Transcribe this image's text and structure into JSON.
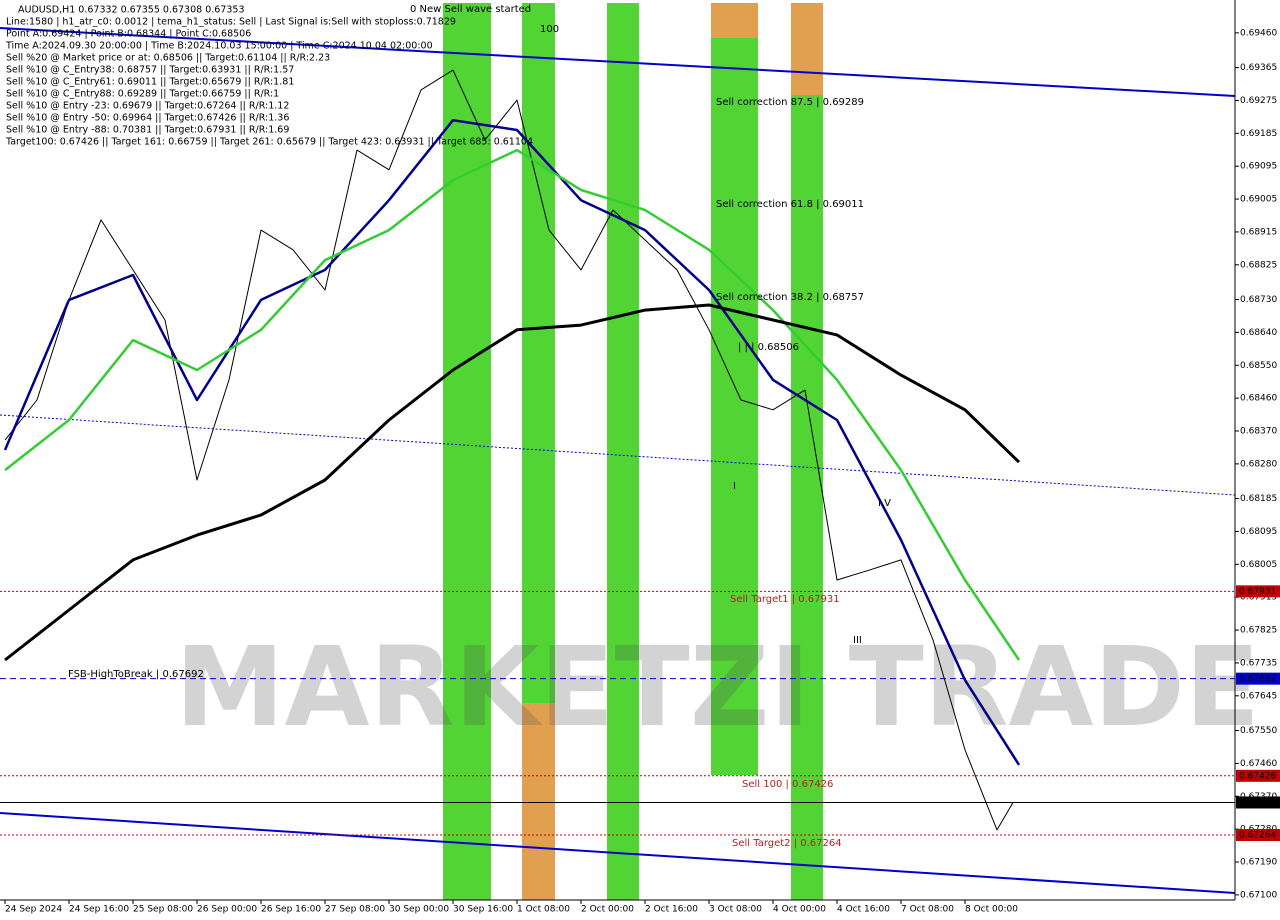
{
  "chart_data": {
    "type": "line",
    "title": "AUDUSD,H1  0.67332 0.67355 0.67308 0.67353",
    "info": [
      "Line:1580 | h1_atr_c0: 0.0012 | tema_h1_status: Sell | Last Signal is:Sell with stoploss:0.71829",
      "Point A:0.69424 | Point B:0.68344 | Point C:0.68506",
      "Time A:2024.09.30 20:00:00 | Time B:2024.10.03 15:00:00 | Time C:2024.10.04 02:00:00",
      "Sell %20 @ Market price or at: 0.68506 || Target:0.61104 || R/R:2.23",
      "Sell %10 @ C_Entry38: 0.68757 || Target:0.63931 || R/R:1.57",
      "Sell %10 @ C_Entry61: 0.69011 || Target:0.65679 || R/R:1.81",
      "Sell %10 @ C_Entry88: 0.69289 || Target:0.66759 || R/R:1",
      "Sell %10 @ Entry -23: 0.69679 || Target:0.67264 || R/R:1.12",
      "Sell %10 @ Entry -50: 0.69964 || Target:0.67426 || R/R:1.36",
      "Sell %10 @ Entry -88: 0.70381 || Target:0.67931 || R/R:1.69",
      "Target100: 0.67426 || Target 161: 0.66759 || Target 261: 0.65679 || Target 423: 0.63931 || Target 685: 0.61104"
    ],
    "annotations": [
      {
        "text": "0 New Sell wave started",
        "color": "#000000"
      },
      {
        "text": "100",
        "color": "#000000"
      },
      {
        "text": "Sell correction 87.5 | 0.69289",
        "color": "#000000"
      },
      {
        "text": "Sell correction 61.8 | 0.69011",
        "color": "#000000"
      },
      {
        "text": "Sell correction 38.2 | 0.68757",
        "color": "#000000"
      },
      {
        "text": "| | | 0.68506",
        "color": "#000000"
      },
      {
        "text": "I V",
        "color": "#000000"
      },
      {
        "text": "III",
        "color": "#000000"
      },
      {
        "text": "I",
        "color": "#000000"
      },
      {
        "text": "Sell Target1 | 0.67931",
        "color": "#b22222"
      },
      {
        "text": "FSB-HighToBreak | 0.67692",
        "color": "#000000"
      },
      {
        "text": "Sell 100 | 0.67426",
        "color": "#b22222"
      },
      {
        "text": "Sell Target2 | 0.67264",
        "color": "#b22222"
      }
    ],
    "watermark": "MARKETZI TRADE",
    "xlim": [
      -1.25,
      307.5
    ],
    "ylim": [
      0.67086,
      0.6955
    ],
    "xticks": [
      {
        "value": 0,
        "label": "24 Sep 2024"
      },
      {
        "value": 16,
        "label": "24 Sep 16:00"
      },
      {
        "value": 32,
        "label": "25 Sep 08:00"
      },
      {
        "value": 48,
        "label": "26 Sep 00:00"
      },
      {
        "value": 64,
        "label": "26 Sep 16:00"
      },
      {
        "value": 80,
        "label": "27 Sep 08:00"
      },
      {
        "value": 96,
        "label": "30 Sep 00:00"
      },
      {
        "value": 112,
        "label": "30 Sep 16:00"
      },
      {
        "value": 128,
        "label": "1 Oct 08:00"
      },
      {
        "value": 144,
        "label": "2 Oct 00:00"
      },
      {
        "value": 160,
        "label": "2 Oct 16:00"
      },
      {
        "value": 176,
        "label": "3 Oct 08:00"
      },
      {
        "value": 192,
        "label": "4 Oct 00:00"
      },
      {
        "value": 208,
        "label": "4 Oct 16:00"
      },
      {
        "value": 224,
        "label": "7 Oct 08:00"
      },
      {
        "value": 240,
        "label": "8 Oct 00:00"
      }
    ],
    "yticks": [
      {
        "value": 0.6946,
        "label": "0.69460"
      },
      {
        "value": 0.69365,
        "label": "0.69365"
      },
      {
        "value": 0.69275,
        "label": "0.69275"
      },
      {
        "value": 0.69185,
        "label": "0.69185"
      },
      {
        "value": 0.69095,
        "label": "0.69095"
      },
      {
        "value": 0.69005,
        "label": "0.69005"
      },
      {
        "value": 0.68915,
        "label": "0.68915"
      },
      {
        "value": 0.68825,
        "label": "0.68825"
      },
      {
        "value": 0.6873,
        "label": "0.68730"
      },
      {
        "value": 0.6864,
        "label": "0.68640"
      },
      {
        "value": 0.6855,
        "label": "0.68550"
      },
      {
        "value": 0.6846,
        "label": "0.68460"
      },
      {
        "value": 0.6837,
        "label": "0.68370"
      },
      {
        "value": 0.6828,
        "label": "0.68280"
      },
      {
        "value": 0.68185,
        "label": "0.68185"
      },
      {
        "value": 0.68095,
        "label": "0.68095"
      },
      {
        "value": 0.68005,
        "label": "0.68005"
      },
      {
        "value": 0.67915,
        "label": "0.67915"
      },
      {
        "value": 0.67825,
        "label": "0.67825"
      },
      {
        "value": 0.67735,
        "label": "0.67735"
      },
      {
        "value": 0.67645,
        "label": "0.67645"
      },
      {
        "value": 0.6755,
        "label": "0.67550"
      },
      {
        "value": 0.6746,
        "label": "0.67460"
      },
      {
        "value": 0.6737,
        "label": "0.67370"
      },
      {
        "value": 0.6728,
        "label": "0.67280"
      },
      {
        "value": 0.6719,
        "label": "0.67190"
      },
      {
        "value": 0.671,
        "label": "0.67100"
      }
    ],
    "levels": [
      {
        "value": 0.67931,
        "label": "0.67931",
        "color": "#c00000",
        "dash": "2,2"
      },
      {
        "value": 0.67692,
        "label": "0.67692",
        "color": "#0000cc",
        "dash": "6,4"
      },
      {
        "value": 0.67426,
        "label": "0.67426",
        "color": "#c00000",
        "dash": "2,2"
      },
      {
        "value": 0.67353,
        "label": "0.67353",
        "color": "#000000",
        "dash": "none"
      },
      {
        "value": 0.67264,
        "label": "0.67264",
        "color": "#c00000",
        "dash": "2,2"
      }
    ],
    "series": [
      {
        "color": "#000000",
        "width": 1,
        "x": [
          0,
          8,
          16,
          24,
          32,
          40,
          48,
          56,
          64,
          72,
          80,
          88,
          96,
          104,
          112,
          120,
          128,
          136,
          144,
          152,
          160,
          168,
          176,
          184,
          192,
          200,
          208,
          216,
          224,
          232,
          240,
          248,
          252
        ],
        "values": [
          0.68345,
          0.68455,
          0.68729,
          0.68948,
          0.68811,
          0.68674,
          0.68236,
          0.6851,
          0.6892,
          0.68866,
          0.68756,
          0.69139,
          0.69085,
          0.69304,
          0.69358,
          0.69167,
          0.69276,
          0.6892,
          0.68811,
          0.68975,
          0.68893,
          0.68811,
          0.68647,
          0.68455,
          0.68428,
          0.68482,
          0.67962,
          0.67989,
          0.68017,
          0.67798,
          0.67497,
          0.67278,
          0.67353
        ]
      },
      {
        "color": "#00008b",
        "width": 2.5,
        "x": [
          0,
          16,
          32,
          48,
          64,
          80,
          96,
          112,
          128,
          144,
          160,
          176,
          192,
          208,
          224,
          240,
          253.5
        ],
        "values": [
          0.68318,
          0.68729,
          0.68797,
          0.68455,
          0.68729,
          0.68811,
          0.69002,
          0.69221,
          0.69194,
          0.69002,
          0.6892,
          0.68756,
          0.6851,
          0.684,
          0.68072,
          0.67688,
          0.67456
        ]
      },
      {
        "color": "#33cc33",
        "width": 2.5,
        "x": [
          0,
          16,
          32,
          48,
          64,
          80,
          96,
          112,
          128,
          144,
          160,
          176,
          192,
          208,
          224,
          240,
          253.5
        ],
        "values": [
          0.68263,
          0.684,
          0.68619,
          0.68537,
          0.68647,
          0.68838,
          0.6892,
          0.69057,
          0.69139,
          0.6903,
          0.68975,
          0.68866,
          0.68701,
          0.6851,
          0.68263,
          0.67962,
          0.67743
        ]
      },
      {
        "color": "#000000",
        "width": 3,
        "x": [
          0,
          16,
          32,
          48,
          64,
          80,
          96,
          112,
          128,
          144,
          160,
          176,
          192,
          208,
          224,
          240,
          253.5
        ],
        "values": [
          0.67743,
          0.6788,
          0.68017,
          0.68085,
          0.6814,
          0.68236,
          0.684,
          0.68537,
          0.68647,
          0.6866,
          0.68701,
          0.68715,
          0.68674,
          0.68633,
          0.68523,
          0.68428,
          0.68285
        ]
      }
    ]
  }
}
